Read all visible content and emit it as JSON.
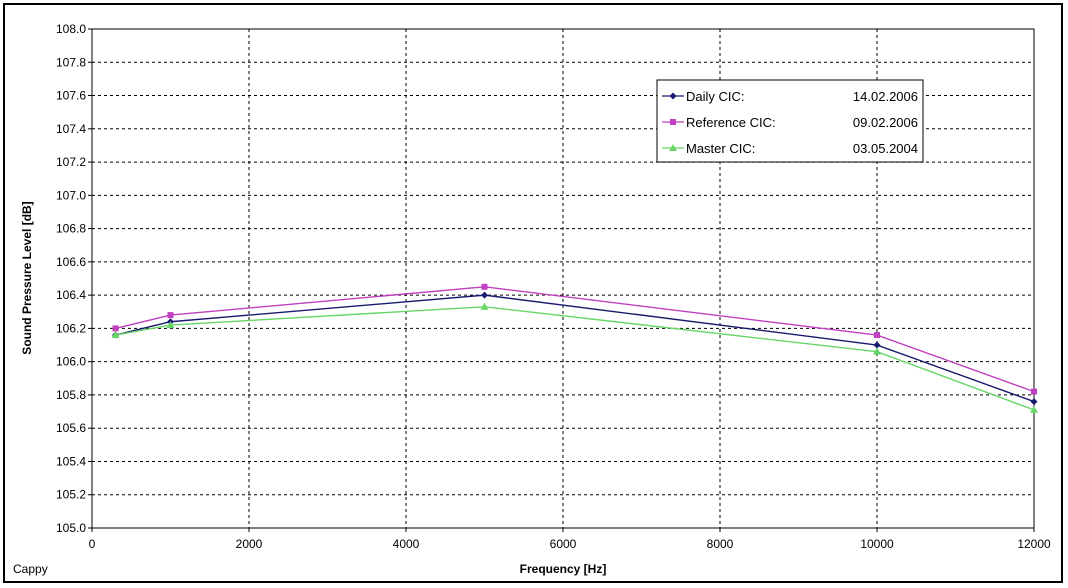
{
  "footer": {
    "label": "Cappy"
  },
  "chart_data": {
    "type": "line",
    "title": "",
    "xlabel": "Frequency [Hz]",
    "ylabel": "Sound Pressure Level [dB]",
    "xlim": [
      0,
      12000
    ],
    "ylim": [
      105.0,
      108.0
    ],
    "xticks": [
      0,
      2000,
      4000,
      6000,
      8000,
      10000,
      12000
    ],
    "yticks": [
      105.0,
      105.2,
      105.4,
      105.6,
      105.8,
      106.0,
      106.2,
      106.4,
      106.6,
      106.8,
      107.0,
      107.2,
      107.4,
      107.6,
      107.8,
      108.0
    ],
    "ytick_labels": [
      "105.0",
      "105.2",
      "105.4",
      "105.6",
      "105.8",
      "106.0",
      "106.2",
      "106.4",
      "106.6",
      "106.8",
      "107.0",
      "107.2",
      "107.4",
      "107.6",
      "107.8",
      "108.0"
    ],
    "grid": true,
    "grid_style": "dashed",
    "legend_position": "top-right",
    "x": [
      300,
      1000,
      5000,
      10000,
      12000
    ],
    "series": [
      {
        "name": "Daily CIC:",
        "date": "14.02.2006",
        "color": "#1a1a6e",
        "marker": "diamond",
        "values": [
          106.16,
          106.24,
          106.4,
          106.1,
          105.76
        ]
      },
      {
        "name": "Reference CIC:",
        "date": "09.02.2006",
        "color": "#c040c0",
        "marker": "square",
        "values": [
          106.2,
          106.28,
          106.45,
          106.16,
          105.82
        ]
      },
      {
        "name": "Master CIC:",
        "date": "03.05.2004",
        "color": "#66d666",
        "marker": "triangle",
        "values": [
          106.16,
          106.22,
          106.33,
          106.06,
          105.71
        ]
      }
    ]
  }
}
